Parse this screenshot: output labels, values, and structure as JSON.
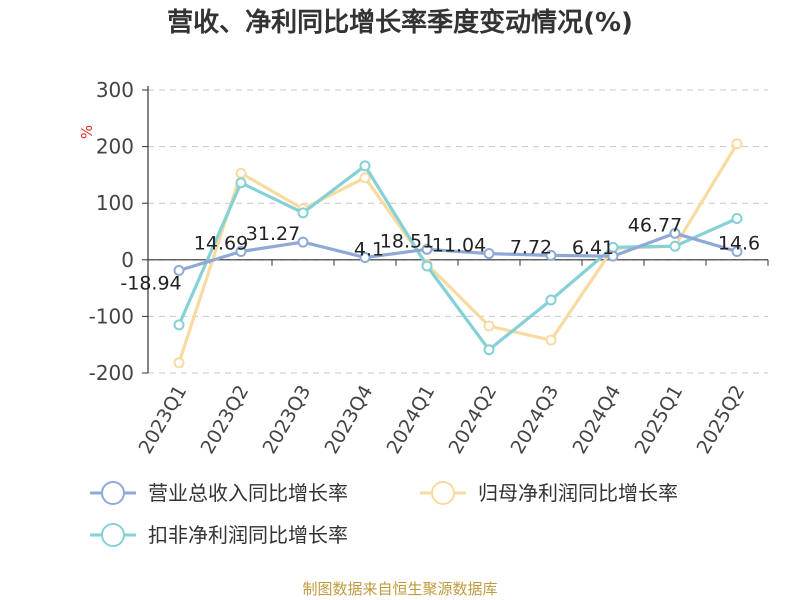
{
  "title": "营收、净利同比增长率季度变动情况(%)",
  "source": "制图数据来自恒生聚源数据库",
  "chart_data": {
    "type": "line",
    "title": "营收、净利同比增长率季度变动情况(%)",
    "ylabel": "%",
    "ylim": [
      -200,
      300
    ],
    "yticks": [
      300,
      200,
      100,
      0,
      -100,
      -200
    ],
    "grid": true,
    "legend_position": "bottom",
    "categories": [
      "2023Q1",
      "2023Q2",
      "2023Q3",
      "2023Q4",
      "2024Q1",
      "2024Q2",
      "2024Q3",
      "2024Q4",
      "2025Q1",
      "2025Q2"
    ],
    "series": [
      {
        "name": "营业总收入同比增长率",
        "color": "#8fa9d6",
        "values": [
          -18.94,
          14.69,
          31.27,
          4.1,
          18.51,
          11.04,
          7.72,
          6.41,
          46.77,
          14.6
        ],
        "labels": [
          "-18.94",
          "14.69",
          "31.27",
          "4.1",
          "18.51",
          "11.04",
          "7.72",
          "6.41",
          "46.77",
          "14.6"
        ]
      },
      {
        "name": "归母净利润同比增长率",
        "color": "#f8dba0",
        "values": [
          -182,
          153,
          90,
          145,
          -8,
          -117,
          -142,
          20,
          24,
          205
        ]
      },
      {
        "name": "扣非净利润同比增长率",
        "color": "#86d1d6",
        "values": [
          -115,
          136,
          83,
          166,
          -11,
          -159,
          -71,
          22,
          24,
          73
        ]
      }
    ]
  }
}
